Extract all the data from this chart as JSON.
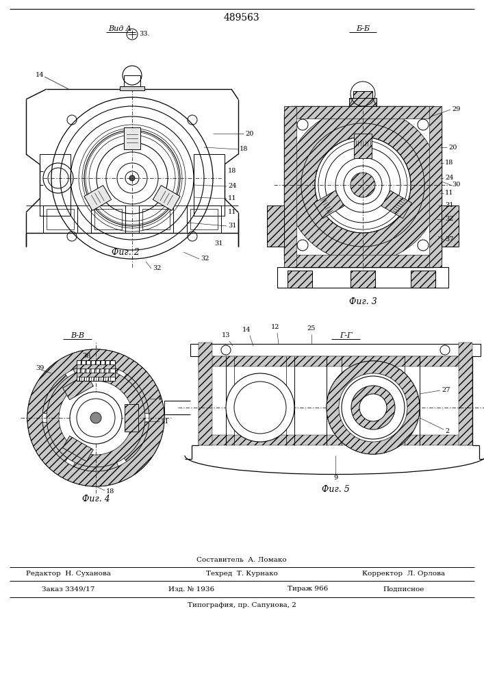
{
  "title": "489563",
  "bg": "#ffffff",
  "lc": "#000000",
  "fig2_caption": "Фиг. 2",
  "fig3_caption": "Фиг. 3",
  "fig4_caption": "Фиг. 4",
  "fig5_caption": "Фиг. 5",
  "view_a": "Вид А",
  "sec_bb": "Б-Б",
  "sec_vv": "В-В",
  "sec_gg": "Г-Г",
  "footer1": "Составитель  А. Ломако",
  "footer2a": "Редактор  Н. Суханова",
  "footer2b": "Техред  Т. Курнако",
  "footer2c": "Корректор  Л. Орлова",
  "footer3a": "Заказ 3349/17",
  "footer3b": "Изд. № 1936",
  "footer3c": "Тираж 966",
  "footer3d": "Подписное",
  "footer4": "Типография, пр. Сапунова, 2"
}
